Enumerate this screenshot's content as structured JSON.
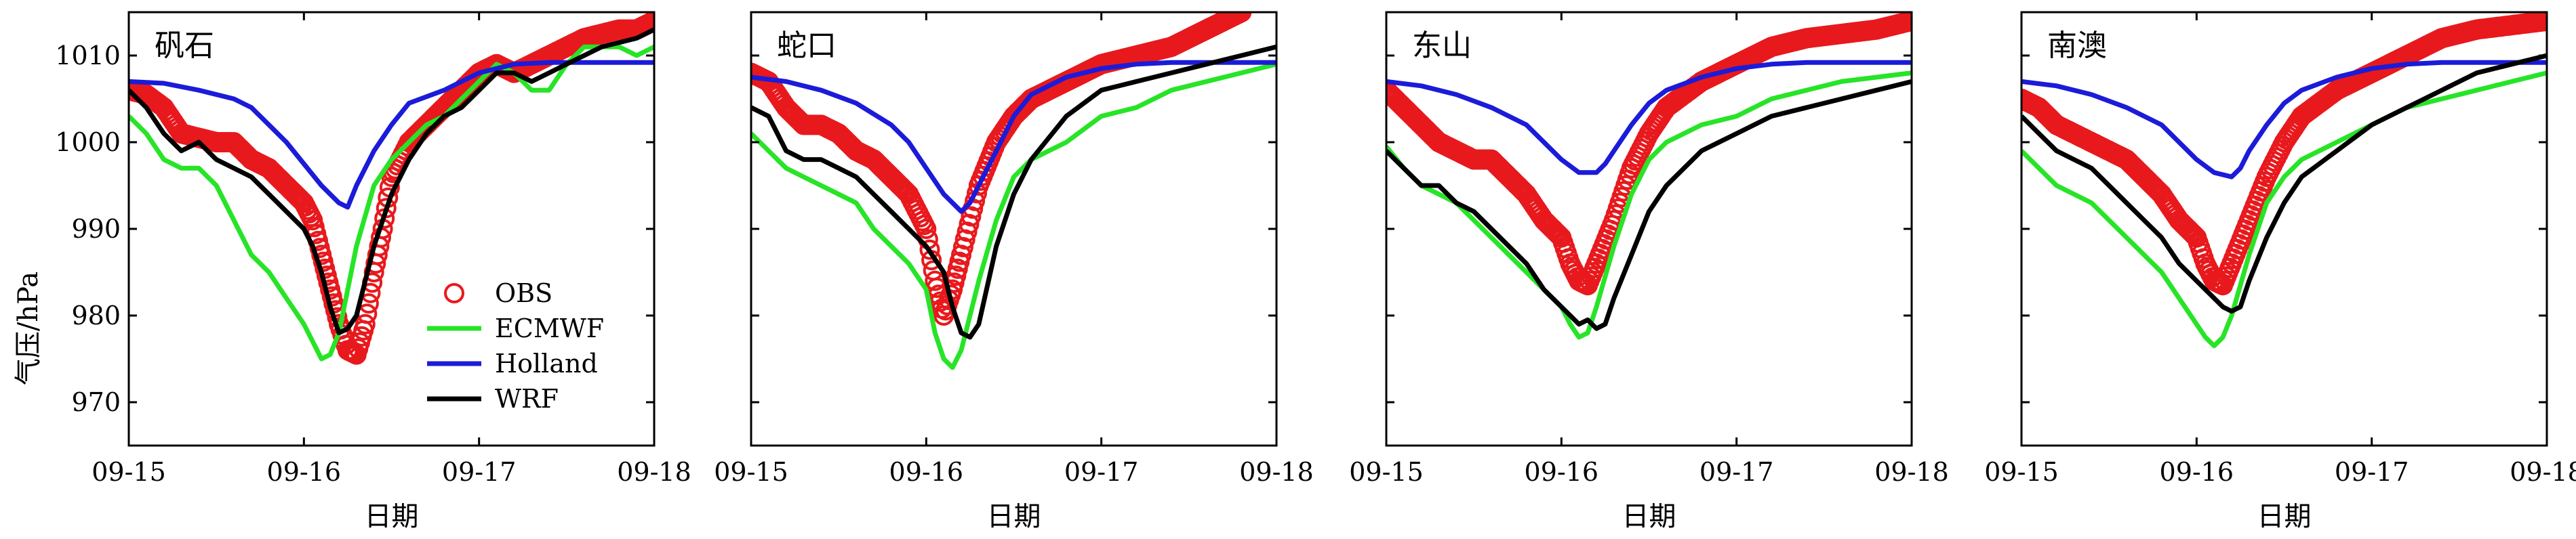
{
  "figure": {
    "ylabel": "气压/hPa",
    "xlabel": "日期"
  },
  "chart_data": [
    {
      "type": "line",
      "title": "矾石",
      "xlabel": "日期",
      "ylabel": "气压/hPa",
      "xlim": [
        0,
        3
      ],
      "ylim": [
        965,
        1015
      ],
      "xticks": [
        0,
        1,
        2,
        3
      ],
      "xtick_labels": [
        "09-15",
        "09-16",
        "09-17",
        "09-18"
      ],
      "yticks": [
        970,
        980,
        990,
        1000,
        1010
      ],
      "show_ylabel": true,
      "show_legend": true,
      "legend_position": "bottom-right",
      "series": [
        {
          "name": "OBS",
          "style": "marker",
          "color": "#e8191d",
          "x": [
            0,
            0.1,
            0.2,
            0.3,
            0.4,
            0.5,
            0.6,
            0.7,
            0.8,
            0.9,
            1.0,
            1.05,
            1.1,
            1.15,
            1.2,
            1.25,
            1.3,
            1.35,
            1.4,
            1.45,
            1.5,
            1.6,
            1.7,
            1.8,
            1.9,
            2.0,
            2.1,
            2.2,
            2.3,
            2.4,
            2.5,
            2.6,
            2.7,
            2.8,
            2.9,
            3.0
          ],
          "y": [
            1006,
            1005.5,
            1004,
            1001,
            1000.5,
            1000,
            1000,
            998,
            997,
            995,
            993,
            991,
            987,
            983,
            979,
            976,
            975.5,
            979,
            985,
            990,
            996,
            1000,
            1002,
            1004,
            1006,
            1008,
            1009,
            1008,
            1009,
            1010,
            1011,
            1012,
            1012.5,
            1013,
            1013,
            1014
          ]
        },
        {
          "name": "ECMWF",
          "style": "line",
          "color": "#27e427",
          "x": [
            0,
            0.1,
            0.2,
            0.3,
            0.4,
            0.5,
            0.6,
            0.7,
            0.8,
            0.9,
            1.0,
            1.05,
            1.1,
            1.15,
            1.2,
            1.3,
            1.4,
            1.5,
            1.6,
            1.7,
            1.8,
            1.9,
            2.0,
            2.1,
            2.2,
            2.3,
            2.4,
            2.5,
            2.6,
            2.7,
            2.8,
            2.9,
            3.0
          ],
          "y": [
            1003,
            1001,
            998,
            997,
            997,
            995,
            991,
            987,
            985,
            982,
            979,
            977,
            975,
            975.5,
            978,
            988,
            995,
            998,
            1000,
            1002,
            1003,
            1005,
            1007,
            1009,
            1008,
            1006,
            1006,
            1009,
            1011,
            1011,
            1011,
            1010,
            1011
          ]
        },
        {
          "name": "Holland",
          "style": "line",
          "color": "#1b1bd9",
          "x": [
            0,
            0.2,
            0.4,
            0.6,
            0.7,
            0.8,
            0.9,
            1.0,
            1.1,
            1.2,
            1.25,
            1.3,
            1.4,
            1.5,
            1.6,
            1.8,
            2.0,
            2.2,
            2.4,
            2.6,
            2.8,
            3.0
          ],
          "y": [
            1007,
            1006.8,
            1006,
            1005,
            1004,
            1002,
            1000,
            997.5,
            995,
            993,
            992.5,
            995,
            999,
            1002,
            1004.5,
            1006,
            1008,
            1009,
            1009.2,
            1009.2,
            1009.2,
            1009.2
          ]
        },
        {
          "name": "WRF",
          "style": "line",
          "color": "#000000",
          "x": [
            0,
            0.1,
            0.2,
            0.3,
            0.4,
            0.5,
            0.6,
            0.7,
            0.8,
            0.9,
            1.0,
            1.05,
            1.1,
            1.15,
            1.2,
            1.25,
            1.3,
            1.35,
            1.4,
            1.5,
            1.6,
            1.7,
            1.8,
            1.9,
            2.0,
            2.1,
            2.2,
            2.3,
            2.4,
            2.5,
            2.6,
            2.7,
            2.8,
            2.9,
            3.0
          ],
          "y": [
            1006,
            1004,
            1001,
            999,
            1000,
            998,
            997,
            996,
            994,
            992,
            990,
            988,
            985,
            981,
            978,
            978.5,
            980,
            984,
            988,
            994,
            998,
            1001,
            1003,
            1004,
            1006,
            1008,
            1008,
            1007,
            1008,
            1009,
            1010,
            1011,
            1011.5,
            1012,
            1013
          ]
        }
      ]
    },
    {
      "type": "line",
      "title": "蛇口",
      "xlabel": "日期",
      "ylabel": "",
      "xlim": [
        0,
        3
      ],
      "ylim": [
        965,
        1015
      ],
      "xticks": [
        0,
        1,
        2,
        3
      ],
      "xtick_labels": [
        "09-15",
        "09-16",
        "09-17",
        "09-18"
      ],
      "yticks": [
        970,
        980,
        990,
        1000,
        1010
      ],
      "show_ylabel": false,
      "show_legend": false,
      "series": [
        {
          "name": "OBS",
          "style": "marker",
          "color": "#e8191d",
          "x": [
            0,
            0.1,
            0.2,
            0.3,
            0.4,
            0.5,
            0.6,
            0.7,
            0.8,
            0.9,
            1.0,
            1.05,
            1.1,
            1.15,
            1.2,
            1.3,
            1.4,
            1.5,
            1.6,
            1.8,
            2.0,
            2.2,
            2.4,
            2.6,
            2.8
          ],
          "y": [
            1008,
            1007,
            1004,
            1002,
            1002,
            1001,
            999,
            998,
            996,
            994,
            990,
            984,
            980,
            983,
            987,
            995,
            1000,
            1003,
            1005,
            1007,
            1009,
            1010,
            1011,
            1013,
            1015
          ]
        },
        {
          "name": "ECMWF",
          "style": "line",
          "color": "#27e427",
          "x": [
            0,
            0.1,
            0.2,
            0.3,
            0.4,
            0.5,
            0.6,
            0.7,
            0.8,
            0.9,
            1.0,
            1.05,
            1.1,
            1.15,
            1.2,
            1.3,
            1.4,
            1.5,
            1.6,
            1.8,
            2.0,
            2.2,
            2.4,
            2.6,
            2.8,
            3.0
          ],
          "y": [
            1001,
            999,
            997,
            996,
            995,
            994,
            993,
            990,
            988,
            986,
            983,
            978,
            975,
            974,
            976,
            984,
            991,
            996,
            998,
            1000,
            1003,
            1004,
            1006,
            1007,
            1008,
            1009
          ]
        },
        {
          "name": "Holland",
          "style": "line",
          "color": "#1b1bd9",
          "x": [
            0,
            0.2,
            0.4,
            0.6,
            0.8,
            0.9,
            1.0,
            1.1,
            1.2,
            1.25,
            1.3,
            1.4,
            1.5,
            1.6,
            1.8,
            2.0,
            2.2,
            2.4,
            2.6,
            2.8,
            3.0
          ],
          "y": [
            1007.5,
            1007,
            1006,
            1004.5,
            1002,
            1000,
            997,
            994,
            992,
            993,
            995,
            999,
            1003,
            1005.5,
            1007.5,
            1008.5,
            1009,
            1009.2,
            1009.2,
            1009.2,
            1009.2
          ]
        },
        {
          "name": "WRF",
          "style": "line",
          "color": "#000000",
          "x": [
            0,
            0.1,
            0.2,
            0.3,
            0.4,
            0.5,
            0.6,
            0.7,
            0.8,
            0.9,
            1.0,
            1.1,
            1.15,
            1.2,
            1.25,
            1.3,
            1.4,
            1.5,
            1.6,
            1.8,
            2.0,
            2.2,
            2.4,
            2.6,
            2.8,
            3.0
          ],
          "y": [
            1004,
            1003,
            999,
            998,
            998,
            997,
            996,
            994,
            992,
            990,
            988,
            985,
            981,
            978,
            977.5,
            979,
            988,
            994,
            998,
            1003,
            1006,
            1007,
            1008,
            1009,
            1010,
            1011
          ]
        }
      ]
    },
    {
      "type": "line",
      "title": "东山",
      "xlabel": "日期",
      "ylabel": "",
      "xlim": [
        0,
        3
      ],
      "ylim": [
        965,
        1015
      ],
      "xticks": [
        0,
        1,
        2,
        3
      ],
      "xtick_labels": [
        "09-15",
        "09-16",
        "09-17",
        "09-18"
      ],
      "yticks": [
        970,
        980,
        990,
        1000,
        1010
      ],
      "show_ylabel": false,
      "show_legend": false,
      "series": [
        {
          "name": "OBS",
          "style": "marker",
          "color": "#e8191d",
          "x": [
            0,
            0.1,
            0.2,
            0.3,
            0.4,
            0.5,
            0.6,
            0.7,
            0.8,
            0.9,
            1.0,
            1.05,
            1.1,
            1.15,
            1.2,
            1.3,
            1.4,
            1.5,
            1.6,
            1.8,
            2.0,
            2.2,
            2.4,
            2.6,
            2.8,
            3.0
          ],
          "y": [
            1006,
            1004,
            1002,
            1000,
            999,
            998,
            998,
            996,
            994,
            991,
            989,
            986,
            984,
            983.5,
            986,
            991,
            997,
            1001,
            1004,
            1007,
            1009,
            1011,
            1012,
            1012.5,
            1013,
            1014
          ]
        },
        {
          "name": "ECMWF",
          "style": "line",
          "color": "#27e427",
          "x": [
            0,
            0.1,
            0.2,
            0.3,
            0.4,
            0.5,
            0.6,
            0.7,
            0.8,
            0.9,
            1.0,
            1.05,
            1.1,
            1.15,
            1.2,
            1.3,
            1.4,
            1.5,
            1.6,
            1.8,
            2.0,
            2.2,
            2.4,
            2.6,
            2.8,
            3.0
          ],
          "y": [
            999.5,
            997,
            995,
            994,
            993,
            991,
            989,
            987,
            985,
            983,
            981,
            979,
            977.5,
            978,
            981,
            988,
            994,
            998,
            1000,
            1002,
            1003,
            1005,
            1006,
            1007,
            1007.5,
            1008
          ]
        },
        {
          "name": "Holland",
          "style": "line",
          "color": "#1b1bd9",
          "x": [
            0,
            0.2,
            0.4,
            0.6,
            0.8,
            0.9,
            1.0,
            1.1,
            1.2,
            1.25,
            1.3,
            1.4,
            1.5,
            1.6,
            1.8,
            2.0,
            2.2,
            2.4,
            2.6,
            2.8,
            3.0
          ],
          "y": [
            1007,
            1006.5,
            1005.5,
            1004,
            1002,
            1000,
            998,
            996.5,
            996.5,
            997.5,
            999,
            1002,
            1004.5,
            1006,
            1007.5,
            1008.5,
            1009,
            1009.2,
            1009.2,
            1009.2,
            1009.2
          ]
        },
        {
          "name": "WRF",
          "style": "line",
          "color": "#000000",
          "x": [
            0,
            0.1,
            0.2,
            0.3,
            0.4,
            0.5,
            0.6,
            0.7,
            0.8,
            0.9,
            1.0,
            1.05,
            1.1,
            1.15,
            1.2,
            1.25,
            1.3,
            1.4,
            1.5,
            1.6,
            1.8,
            2.0,
            2.2,
            2.4,
            2.6,
            2.8,
            3.0
          ],
          "y": [
            999,
            997,
            995,
            995,
            993,
            992,
            990,
            988,
            986,
            983,
            981,
            980,
            979,
            979.5,
            978.5,
            979,
            982,
            987,
            992,
            995,
            999,
            1001,
            1003,
            1004,
            1005,
            1006,
            1007
          ]
        }
      ]
    },
    {
      "type": "line",
      "title": "南澳",
      "xlabel": "日期",
      "ylabel": "",
      "xlim": [
        0,
        3
      ],
      "ylim": [
        965,
        1015
      ],
      "xticks": [
        0,
        1,
        2,
        3
      ],
      "xtick_labels": [
        "09-15",
        "09-16",
        "09-17",
        "09-18"
      ],
      "yticks": [
        970,
        980,
        990,
        1000,
        1010
      ],
      "show_ylabel": false,
      "show_legend": false,
      "series": [
        {
          "name": "OBS",
          "style": "marker",
          "color": "#e8191d",
          "x": [
            0,
            0.1,
            0.2,
            0.3,
            0.4,
            0.5,
            0.6,
            0.7,
            0.8,
            0.9,
            1.0,
            1.05,
            1.1,
            1.15,
            1.2,
            1.3,
            1.4,
            1.5,
            1.6,
            1.8,
            2.0,
            2.2,
            2.4,
            2.6,
            2.8,
            3.0
          ],
          "y": [
            1005,
            1004,
            1002,
            1001,
            1000,
            999,
            998,
            996,
            994,
            991,
            989,
            986,
            984,
            983.5,
            986,
            991,
            996,
            1000,
            1003,
            1006,
            1008,
            1010,
            1012,
            1013,
            1013.5,
            1014
          ]
        },
        {
          "name": "ECMWF",
          "style": "line",
          "color": "#27e427",
          "x": [
            0,
            0.1,
            0.2,
            0.3,
            0.4,
            0.5,
            0.6,
            0.7,
            0.8,
            0.9,
            1.0,
            1.05,
            1.1,
            1.15,
            1.2,
            1.3,
            1.4,
            1.5,
            1.6,
            1.8,
            2.0,
            2.2,
            2.4,
            2.6,
            2.8,
            3.0
          ],
          "y": [
            999,
            997,
            995,
            994,
            993,
            991,
            989,
            987,
            985,
            982,
            979,
            977.5,
            976.5,
            977.5,
            980,
            987,
            993,
            996,
            998,
            1000,
            1002,
            1004,
            1005,
            1006,
            1007,
            1008
          ]
        },
        {
          "name": "Holland",
          "style": "line",
          "color": "#1b1bd9",
          "x": [
            0,
            0.2,
            0.4,
            0.6,
            0.8,
            0.9,
            1.0,
            1.1,
            1.2,
            1.25,
            1.3,
            1.4,
            1.5,
            1.6,
            1.8,
            2.0,
            2.2,
            2.4,
            2.6,
            2.8,
            3.0
          ],
          "y": [
            1007,
            1006.5,
            1005.5,
            1004,
            1002,
            1000,
            998,
            996.5,
            996,
            997,
            999,
            1002,
            1004.5,
            1006,
            1007.5,
            1008.5,
            1009,
            1009.2,
            1009.2,
            1009.2,
            1009.2
          ]
        },
        {
          "name": "WRF",
          "style": "line",
          "color": "#000000",
          "x": [
            0,
            0.1,
            0.2,
            0.3,
            0.4,
            0.5,
            0.6,
            0.7,
            0.8,
            0.9,
            1.0,
            1.05,
            1.1,
            1.15,
            1.2,
            1.25,
            1.3,
            1.4,
            1.5,
            1.6,
            1.8,
            2.0,
            2.2,
            2.4,
            2.6,
            2.8,
            3.0
          ],
          "y": [
            1003,
            1001,
            999,
            998,
            997,
            995,
            993,
            991,
            989,
            986,
            984,
            983,
            982,
            981,
            980.5,
            981,
            984,
            989,
            993,
            996,
            999,
            1002,
            1004,
            1006,
            1008,
            1009,
            1010
          ]
        }
      ]
    }
  ]
}
